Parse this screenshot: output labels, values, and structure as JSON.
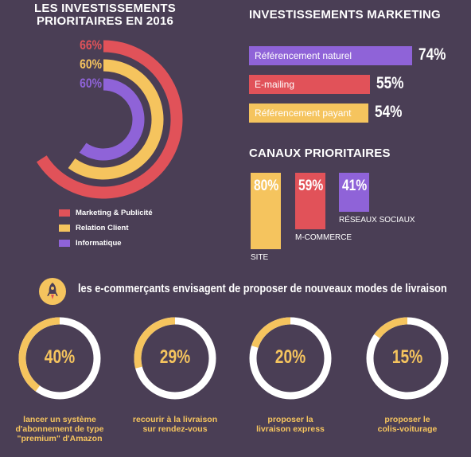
{
  "colors": {
    "background": "#4a3e55",
    "red": "#e15259",
    "yellow": "#f5c45e",
    "purple": "#8f63d8",
    "white": "#ffffff",
    "ring_track": "#ffffff"
  },
  "left_title": "LES INVESTISSEMENTS\nPRIORITAIRES EN 2016",
  "marketing_title": "INVESTISSEMENTS MARKETING",
  "canaux_title": "CANAUX PRIORITAIRES",
  "legend": [
    {
      "label": "Marketing & Publicité",
      "color": "#e15259"
    },
    {
      "label": "Relation Client",
      "color": "#f5c45e"
    },
    {
      "label": "Informatique",
      "color": "#8f63d8"
    }
  ],
  "delivery_title": "les e-commerçants envisagent de proposer de nouveaux modes de livraison",
  "rocket_icon": "rocket-icon",
  "chart_data": [
    {
      "type": "radial-bar",
      "title": "LES INVESTISSEMENTS PRIORITAIRES EN 2016",
      "series": [
        {
          "name": "Marketing & Publicité",
          "value": 66,
          "label": "66%",
          "color": "#e15259"
        },
        {
          "name": "Relation Client",
          "value": 60,
          "label": "60%",
          "color": "#f5c45e"
        },
        {
          "name": "Informatique",
          "value": 60,
          "label": "60%",
          "color": "#8f63d8"
        }
      ],
      "max": 100
    },
    {
      "type": "bar",
      "orientation": "horizontal",
      "title": "INVESTISSEMENTS MARKETING",
      "categories": [
        "Référencement naturel",
        "E-mailing",
        "Référencement payant"
      ],
      "values": [
        74,
        55,
        54
      ],
      "labels": [
        "74%",
        "55%",
        "54%"
      ],
      "colors": [
        "#8f63d8",
        "#e15259",
        "#f5c45e"
      ]
    },
    {
      "type": "bar",
      "orientation": "vertical",
      "title": "CANAUX PRIORITAIRES",
      "categories": [
        "SITE",
        "M-COMMERCE",
        "RÉSEAUX SOCIAUX"
      ],
      "values": [
        80,
        59,
        41
      ],
      "labels": [
        "80%",
        "59%",
        "41%"
      ],
      "colors": [
        "#f5c45e",
        "#e15259",
        "#8f63d8"
      ]
    },
    {
      "type": "pie",
      "variant": "donut-gauge",
      "title": "les e-commerçants envisagent de proposer de nouveaux modes de livraison",
      "items": [
        {
          "value": 40,
          "label": "40%",
          "caption": "lancer un système\nd'abonnement de type\n\"premium\" d'Amazon"
        },
        {
          "value": 29,
          "label": "29%",
          "caption": "recourir à la livraison\nsur rendez-vous"
        },
        {
          "value": 20,
          "label": "20%",
          "caption": "proposer la\nlivraison express"
        },
        {
          "value": 15,
          "label": "15%",
          "caption": "proposer le\ncolis-voiturage"
        }
      ]
    }
  ]
}
